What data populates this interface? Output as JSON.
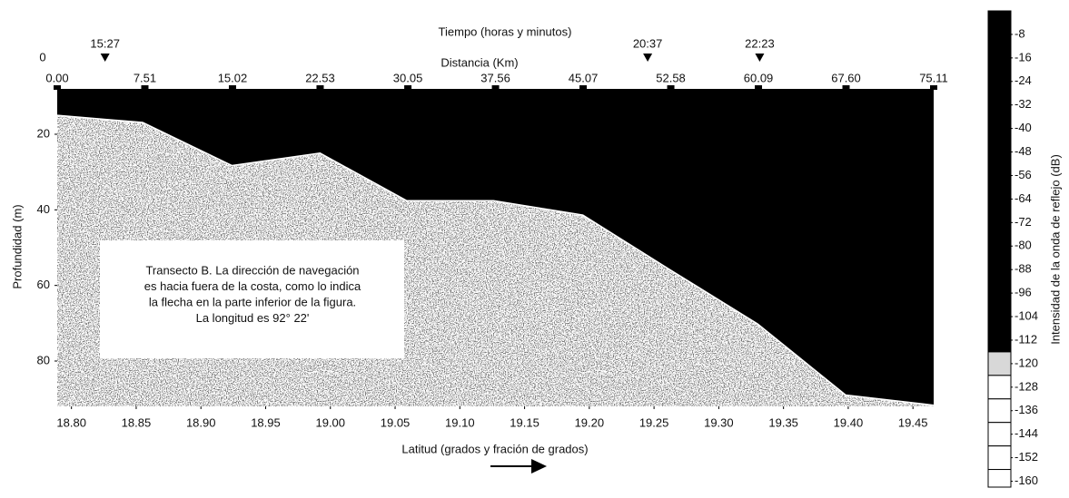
{
  "chart_data": {
    "type": "area",
    "top_title": "Tiempo (horas y minutos)",
    "x2_label": "Distancia (Km)",
    "xlabel": "Latitud (grados y fración de grados)",
    "ylabel": "Profundidad (m)",
    "corner_label": "0",
    "x": [
      18.789,
      18.855,
      18.924,
      18.992,
      19.059,
      19.126,
      19.195,
      19.263,
      19.33,
      19.398,
      19.466
    ],
    "values": [
      15.0,
      16.9,
      28.3,
      25.0,
      37.6,
      37.6,
      41.4,
      56.0,
      70.2,
      89.0,
      91.7
    ],
    "color": "#000000",
    "line_color": "#ffffff",
    "xlim": [
      18.789,
      19.466
    ],
    "xticks": [
      {
        "value": 18.8,
        "label": "18.80"
      },
      18.85,
      {
        "value": 18.9,
        "label": "18.90"
      },
      18.95,
      {
        "value": 19.0,
        "label": "19.00"
      },
      19.05,
      {
        "value": 19.1,
        "label": "19.10"
      },
      19.15,
      {
        "value": 19.2,
        "label": "19.20"
      },
      19.25,
      {
        "value": 19.3,
        "label": "19.30"
      },
      19.35,
      {
        "value": 19.4,
        "label": "19.40"
      },
      19.45
    ],
    "x2lim": [
      0,
      75.11
    ],
    "x2ticks": [
      {
        "value": 0,
        "label": "0.00"
      },
      7.51,
      15.02,
      22.53,
      30.05,
      37.56,
      45.07,
      52.58,
      60.09,
      {
        "value": 67.6,
        "label": "67.60"
      },
      75.11
    ],
    "time_markers": [
      {
        "label": "15:27",
        "x2": 4.1
      },
      {
        "label": "20:37",
        "x2": 50.6
      },
      {
        "label": "22:23",
        "x2": 60.2
      }
    ],
    "ylim": [
      8,
      92
    ],
    "yticks": [
      20,
      40,
      60,
      80
    ],
    "annotation": [
      "Transecto B. La dirección de navegación",
      "es hacia fuera de la costa, como lo indica",
      "la flecha en la parte inferior de la figura.",
      "La longitud es 92° 22'"
    ],
    "colorbar": {
      "label": "Intensidad de la onda de reflejo (dB)",
      "lim": [
        0,
        -162
      ],
      "ticks": [
        -8,
        -16,
        -24,
        -32,
        -40,
        -48,
        -56,
        -64,
        -72,
        -80,
        -88,
        -96,
        -104,
        -112,
        -120,
        -128,
        -136,
        -144,
        -152,
        -160
      ],
      "bands": [
        {
          "from": 0,
          "to": -116,
          "color": "#000000"
        },
        {
          "from": -116,
          "to": -124,
          "color": "#d8d8d8"
        },
        {
          "from": -124,
          "to": -132,
          "color": "#ffffff"
        },
        {
          "from": -132,
          "to": -140,
          "color": "#ffffff"
        },
        {
          "from": -140,
          "to": -148,
          "color": "#ffffff"
        },
        {
          "from": -148,
          "to": -156,
          "color": "#ffffff"
        },
        {
          "from": -156,
          "to": -162,
          "color": "#ffffff"
        }
      ]
    }
  }
}
